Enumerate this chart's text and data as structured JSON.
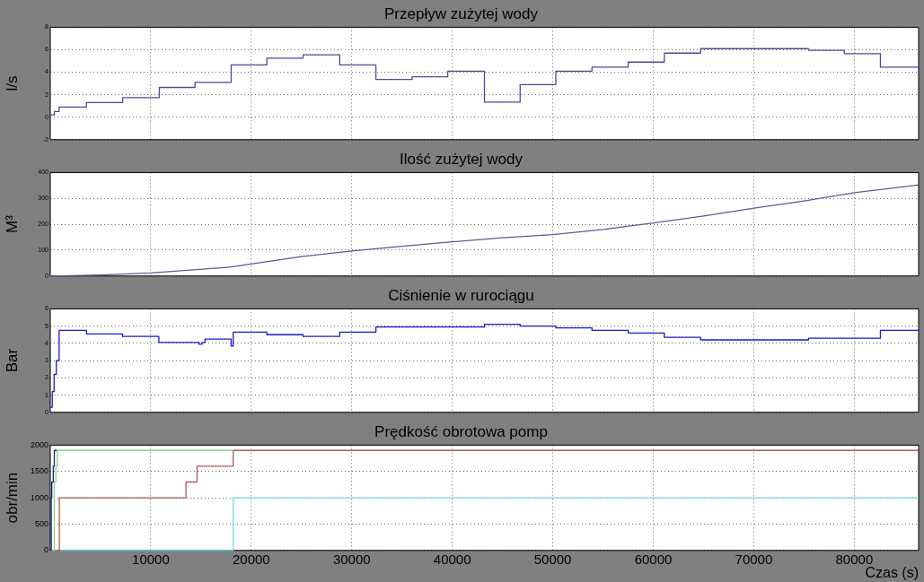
{
  "chart_data": [
    {
      "type": "step",
      "title": "Przepływ zużytej wody",
      "ylabel": "l/s",
      "xlim": [
        0,
        86400
      ],
      "xticks": [
        10000,
        20000,
        30000,
        40000,
        50000,
        60000,
        70000,
        80000
      ],
      "ylim": [
        -2,
        8
      ],
      "yticks": [
        -2,
        0,
        2,
        4,
        6,
        8
      ],
      "grid": true,
      "tick_labels": "y",
      "series": [
        {
          "color": "#4b4b9a",
          "x": [
            0,
            400,
            880,
            3600,
            7200,
            10850,
            14400,
            18000,
            21550,
            25150,
            28800,
            32400,
            36000,
            39550,
            43200,
            46750,
            50300,
            53900,
            57500,
            61100,
            64700,
            75450,
            79000,
            82600,
            86400
          ],
          "values": [
            0.2,
            0.5,
            0.9,
            1.3,
            1.75,
            2.65,
            3.1,
            4.65,
            5.25,
            5.55,
            4.65,
            3.35,
            3.6,
            4.1,
            1.35,
            2.9,
            4.1,
            4.45,
            4.9,
            5.7,
            6.1,
            5.95,
            5.65,
            4.45,
            4.45
          ]
        }
      ]
    },
    {
      "type": "line",
      "title": "Ilość zużytej wody",
      "ylabel": "M³",
      "xlim": [
        0,
        86400
      ],
      "xticks": [
        10000,
        20000,
        30000,
        40000,
        50000,
        60000,
        70000,
        80000
      ],
      "ylim": [
        0,
        400
      ],
      "yticks": [
        0,
        100,
        200,
        300,
        400
      ],
      "grid": true,
      "tick_labels": "y",
      "series": [
        {
          "color": "#5a5a9a",
          "x": [
            0,
            5000,
            10000,
            18000,
            25000,
            30000,
            35000,
            40000,
            45000,
            50000,
            55000,
            60000,
            65000,
            70000,
            75000,
            80000,
            86400
          ],
          "values": [
            0,
            4,
            12,
            35,
            75,
            97,
            115,
            132,
            148,
            160,
            180,
            205,
            232,
            262,
            290,
            322,
            352
          ]
        }
      ]
    },
    {
      "type": "step",
      "title": "Ciśnienie w rurociągu",
      "ylabel": "Bar",
      "xlim": [
        0,
        86400
      ],
      "xticks": [
        10000,
        20000,
        30000,
        40000,
        50000,
        60000,
        70000,
        80000
      ],
      "ylim": [
        0,
        6
      ],
      "yticks": [
        0,
        1,
        2,
        3,
        4,
        5,
        6
      ],
      "grid": true,
      "tick_labels": "y",
      "series": [
        {
          "color": "#1a1acc",
          "x": [
            0,
            200,
            380,
            600,
            880,
            3600,
            7200,
            10800,
            14800,
            15100,
            15400,
            18000,
            18200,
            21550,
            25150,
            28800,
            32400,
            43200,
            46750,
            50300,
            53900,
            57500,
            61100,
            64700,
            75450,
            82600,
            86400
          ],
          "values": [
            0.3,
            1.2,
            2.2,
            3.0,
            4.75,
            4.55,
            4.4,
            4.05,
            3.95,
            4.05,
            4.25,
            3.85,
            4.65,
            4.5,
            4.4,
            4.65,
            4.95,
            5.1,
            5.0,
            4.9,
            4.75,
            4.6,
            4.35,
            4.2,
            4.3,
            4.75,
            4.75
          ]
        }
      ]
    },
    {
      "type": "step",
      "title": "Prędkość obrotowa pomp",
      "xlabel": "Czas (s)",
      "ylabel": "obr/min",
      "xlim": [
        0,
        86400
      ],
      "xticks": [
        10000,
        20000,
        30000,
        40000,
        50000,
        60000,
        70000,
        80000
      ],
      "ylim": [
        0,
        2000
      ],
      "yticks": [
        0,
        500,
        1000,
        1500,
        2000
      ],
      "grid": true,
      "series": [
        {
          "color": "#1e1e80",
          "x": [
            0,
            100,
            150,
            300,
            400,
            650
          ],
          "values": [
            0,
            1000,
            1300,
            1600,
            1900,
            1900
          ]
        },
        {
          "color": "#80d880",
          "x": [
            0,
            400,
            550,
            700,
            18200
          ],
          "values": [
            0,
            1300,
            1600,
            1900,
            1900
          ]
        },
        {
          "color": "#b05a5a",
          "x": [
            0,
            900,
            13500,
            14600,
            18200,
            86400
          ],
          "values": [
            0,
            1000,
            1300,
            1600,
            1900,
            1900
          ]
        },
        {
          "color": "#70e0e0",
          "x": [
            0,
            18200,
            86400
          ],
          "values": [
            0,
            1000,
            1000
          ]
        }
      ]
    }
  ]
}
